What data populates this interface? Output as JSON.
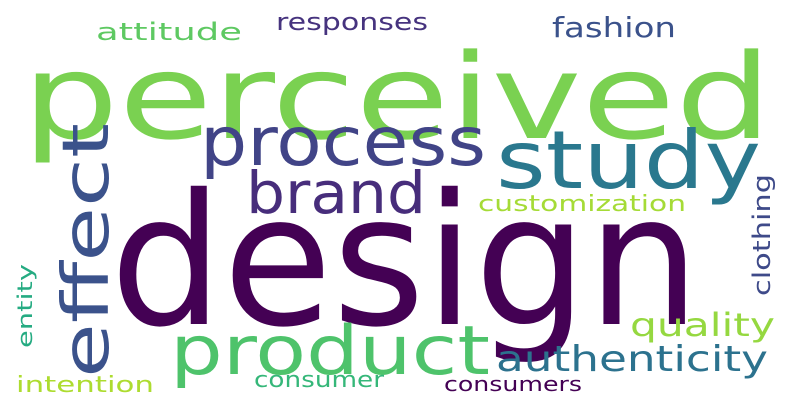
{
  "words": [
    {
      "text": "perceived",
      "color": "#7ad151"
    },
    {
      "text": "design",
      "color": "#440154"
    },
    {
      "text": "study",
      "color": "#2a788e"
    },
    {
      "text": "process",
      "color": "#414487"
    },
    {
      "text": "brand",
      "color": "#472d7b"
    },
    {
      "text": "effect",
      "color": "#3b528b"
    },
    {
      "text": "product",
      "color": "#4ec36b"
    },
    {
      "text": "authenticity",
      "color": "#2c728e"
    },
    {
      "text": "quality",
      "color": "#95d840"
    },
    {
      "text": "customization",
      "color": "#a5db36"
    },
    {
      "text": "clothing",
      "color": "#3e4a89"
    },
    {
      "text": "fashion",
      "color": "#3b528b"
    },
    {
      "text": "responses",
      "color": "#46337e"
    },
    {
      "text": "attitude",
      "color": "#5ec962"
    },
    {
      "text": "consumer",
      "color": "#35b779"
    },
    {
      "text": "consumers",
      "color": "#440154"
    },
    {
      "text": "intention",
      "color": "#addc30"
    },
    {
      "text": "entity",
      "color": "#25ab82"
    }
  ]
}
